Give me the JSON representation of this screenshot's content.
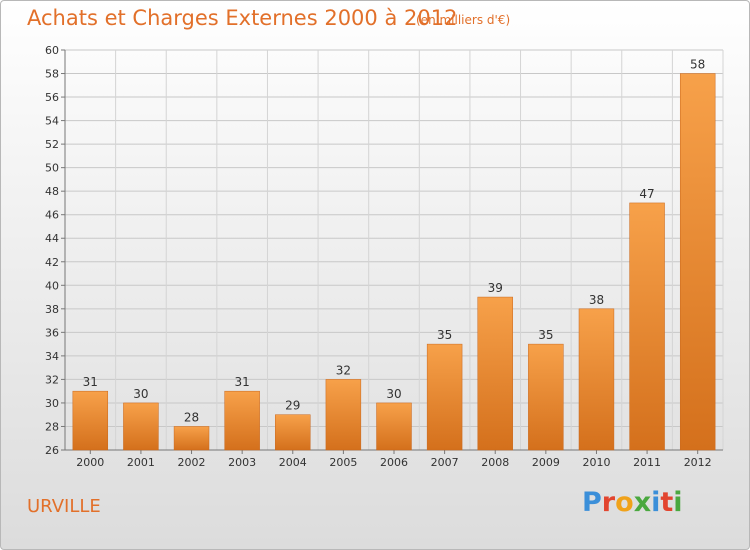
{
  "header": {
    "title": "Achats et Charges Externes 2000 à 2012",
    "subtitle": "(en milliers d'€)"
  },
  "footer": {
    "place": "URVILLE",
    "logo": {
      "letters": [
        "P",
        "r",
        "o",
        "x",
        "i",
        "t",
        "i"
      ],
      "colors": [
        "#3b8fd9",
        "#e2452f",
        "#f0a21a",
        "#4aa83f",
        "#3b8fd9",
        "#e2452f",
        "#4aa83f"
      ]
    }
  },
  "chart_data": {
    "type": "bar",
    "title": "Achats et Charges Externes 2000 à 2012",
    "subtitle": "(en milliers d'€)",
    "categories": [
      "2000",
      "2001",
      "2002",
      "2003",
      "2004",
      "2005",
      "2006",
      "2007",
      "2008",
      "2009",
      "2010",
      "2011",
      "2012"
    ],
    "values": [
      31,
      30,
      28,
      31,
      29,
      32,
      30,
      35,
      39,
      35,
      38,
      47,
      58
    ],
    "ylim": [
      26,
      60
    ],
    "ytick_step": 2,
    "grid": true,
    "bar_color": "#f08a2c"
  }
}
